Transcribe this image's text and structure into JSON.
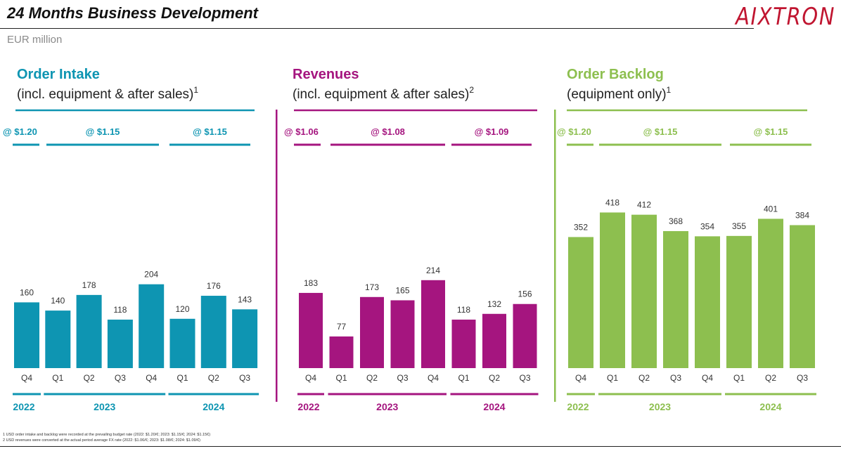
{
  "header": {
    "title": "24 Months Business Development",
    "subtitle": "EUR million",
    "logo_text": "AIXTRON",
    "logo_color": "#c01530"
  },
  "footnotes": [
    "1 USD order intake and backlog were recorded at the prevailing budget rate (2022: $1.20/€; 2023: $1.15/€; 2024: $1.15€)",
    "2 USD revenues were converted at the actual period average FX rate (2022: $1.06/€; 2023: $1.08/€; 2024: $1.09/€)"
  ],
  "chart_data": [
    {
      "type": "bar",
      "title": "Order Intake",
      "subtitle": "(incl. equipment & after sales)",
      "footnote_ref": "1",
      "color": "#0e95b2",
      "categories": [
        "Q4",
        "Q1",
        "Q2",
        "Q3",
        "Q4",
        "Q1",
        "Q2",
        "Q3"
      ],
      "values": [
        160,
        140,
        178,
        118,
        204,
        120,
        176,
        143
      ],
      "fx_rates": [
        {
          "label": "@ $1.20",
          "year": "2022"
        },
        {
          "label": "@ $1.15",
          "year": "2023"
        },
        {
          "label": "@ $1.15",
          "year": "2024"
        }
      ],
      "years": [
        "2022",
        "2023",
        "2024"
      ]
    },
    {
      "type": "bar",
      "title": "Revenues",
      "subtitle": "(incl. equipment & after sales)",
      "footnote_ref": "2",
      "color": "#a5157f",
      "categories": [
        "Q4",
        "Q1",
        "Q2",
        "Q3",
        "Q4",
        "Q1",
        "Q2",
        "Q3"
      ],
      "values": [
        183,
        77,
        173,
        165,
        214,
        118,
        132,
        156
      ],
      "fx_rates": [
        {
          "label": "@ $1.06",
          "year": "2022"
        },
        {
          "label": "@ $1.08",
          "year": "2023"
        },
        {
          "label": "@ $1.09",
          "year": "2024"
        }
      ],
      "years": [
        "2022",
        "2023",
        "2024"
      ]
    },
    {
      "type": "bar",
      "title": "Order Backlog",
      "subtitle": "(equipment only)",
      "footnote_ref": "1",
      "color": "#8dbf4f",
      "categories": [
        "Q4",
        "Q1",
        "Q2",
        "Q3",
        "Q4",
        "Q1",
        "Q2",
        "Q3"
      ],
      "values": [
        352,
        418,
        412,
        368,
        354,
        355,
        401,
        384
      ],
      "fx_rates": [
        {
          "label": "@ $1.20",
          "year": "2022"
        },
        {
          "label": "@ $1.15",
          "year": "2023"
        },
        {
          "label": "@ $1.15",
          "year": "2024"
        }
      ],
      "years": [
        "2022",
        "2023",
        "2024"
      ]
    }
  ]
}
